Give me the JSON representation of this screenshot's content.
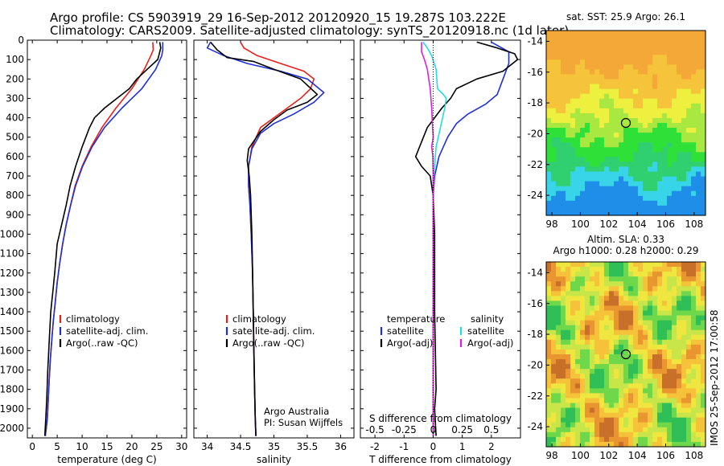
{
  "header": {
    "line1": "Argo profile: CS 5903919_29 16-Sep-2012 20120920_15 19.287S 103.222E",
    "line2": "Climatology: CARS2009. Satellite-adjusted climatology: synTS_20120918.nc (1d later)"
  },
  "colors": {
    "climatology": "#e8201c",
    "satellite": "#1f2fd6",
    "argo": "#000000",
    "sat_t": "#1f2fd6",
    "sat_s": "#22dede",
    "argo_s": "#e21ce0"
  },
  "chart_data": [
    {
      "type": "line",
      "name": "temperature",
      "xlabel": "temperature (deg C)",
      "xlim": [
        -1,
        31
      ],
      "xticks": [
        "0",
        "5",
        "10",
        "15",
        "20",
        "25",
        "30"
      ],
      "ylim": [
        0,
        2050
      ],
      "yticks": [
        "0",
        "100",
        "200",
        "300",
        "400",
        "500",
        "600",
        "700",
        "800",
        "900",
        "1000",
        "1100",
        "1200",
        "1300",
        "1400",
        "1500",
        "1600",
        "1700",
        "1800",
        "1900",
        "2000"
      ],
      "legend": [
        "climatology",
        "satellite-adj. clim.",
        "Argo(..raw -QC)"
      ],
      "series": [
        {
          "name": "climatology",
          "color": "climatology",
          "x": [
            24.2,
            24.3,
            23.8,
            22.5,
            20.0,
            16.8,
            14.0,
            11.8,
            10.0,
            8.6,
            7.7,
            6.8,
            6.1,
            5.5,
            5.0,
            4.6,
            4.2,
            3.9,
            3.6,
            3.4,
            3.2,
            3.0,
            2.8,
            2.6
          ],
          "y": [
            10,
            50,
            80,
            150,
            250,
            350,
            450,
            550,
            650,
            750,
            850,
            950,
            1050,
            1150,
            1250,
            1350,
            1450,
            1550,
            1650,
            1750,
            1850,
            1950,
            2000,
            2040
          ]
        },
        {
          "name": "satellite-adj. clim.",
          "color": "satellite",
          "x": [
            26.2,
            26.2,
            26.0,
            24.8,
            22.0,
            18.0,
            14.5,
            12.0,
            10.1,
            8.7,
            7.7,
            6.8,
            6.1,
            5.5,
            5.0,
            4.6,
            4.2,
            3.9,
            3.6,
            3.4,
            3.2,
            3.0,
            2.8,
            2.6
          ],
          "y": [
            10,
            50,
            80,
            150,
            250,
            350,
            450,
            550,
            650,
            750,
            850,
            950,
            1050,
            1150,
            1250,
            1350,
            1450,
            1550,
            1650,
            1750,
            1850,
            1950,
            2000,
            2040
          ]
        },
        {
          "name": "Argo(..raw -QC)",
          "color": "argo",
          "x": [
            25.6,
            25.8,
            25.5,
            25.2,
            23.5,
            21.0,
            19.5,
            17.0,
            14.5,
            12.5,
            11.5,
            10.0,
            8.7,
            7.6,
            6.8,
            5.9,
            5.0,
            4.5,
            4.1,
            3.7,
            3.4,
            3.1,
            2.9,
            2.7,
            2.5
          ],
          "y": [
            10,
            40,
            70,
            100,
            140,
            200,
            250,
            300,
            350,
            400,
            450,
            550,
            650,
            750,
            850,
            950,
            1050,
            1200,
            1300,
            1400,
            1550,
            1700,
            1850,
            1950,
            2040
          ]
        }
      ]
    },
    {
      "type": "line",
      "name": "salinity",
      "xlabel": "salinity",
      "xlim": [
        33.8,
        36.2
      ],
      "xticks": [
        "34",
        "34.5",
        "35",
        "35.5",
        "36"
      ],
      "ylim": [
        0,
        2050
      ],
      "legend": [
        "climatology",
        "satellite-adj. clim.",
        "Argo(..raw -QC)"
      ],
      "annotation": [
        "Argo Australia",
        "PI: Susan Wijffels"
      ],
      "series": [
        {
          "name": "climatology",
          "color": "climatology",
          "x": [
            34.5,
            34.55,
            34.75,
            35.1,
            35.45,
            35.6,
            35.55,
            35.4,
            35.2,
            35.0,
            34.8,
            34.67,
            34.62,
            34.62,
            34.64,
            34.66,
            34.68,
            34.69,
            34.7,
            34.71,
            34.72,
            34.73
          ],
          "y": [
            10,
            40,
            80,
            120,
            160,
            200,
            250,
            300,
            350,
            400,
            450,
            550,
            650,
            750,
            850,
            1000,
            1200,
            1400,
            1600,
            1800,
            1950,
            2040
          ]
        },
        {
          "name": "satellite-adj. clim.",
          "color": "satellite",
          "x": [
            34.05,
            34.0,
            34.25,
            34.6,
            35.1,
            35.5,
            35.75,
            35.6,
            35.3,
            35.0,
            34.8,
            34.67,
            34.62,
            34.62,
            34.64,
            34.66,
            34.68,
            34.69,
            34.7,
            34.71,
            34.72,
            34.73
          ],
          "y": [
            10,
            40,
            80,
            120,
            160,
            200,
            270,
            320,
            380,
            430,
            480,
            560,
            650,
            750,
            850,
            1000,
            1200,
            1400,
            1600,
            1800,
            1950,
            2040
          ]
        },
        {
          "name": "Argo(..raw -QC)",
          "color": "argo",
          "x": [
            34.05,
            34.15,
            34.3,
            34.7,
            35.0,
            35.4,
            35.65,
            35.5,
            35.2,
            35.0,
            34.8,
            34.62,
            34.6,
            34.63,
            34.65,
            34.66,
            34.67,
            34.68,
            34.69,
            34.7,
            34.71,
            34.72,
            34.73
          ],
          "y": [
            10,
            50,
            90,
            110,
            150,
            200,
            280,
            320,
            360,
            410,
            470,
            560,
            620,
            700,
            800,
            900,
            1000,
            1200,
            1400,
            1600,
            1800,
            1950,
            2040
          ]
        }
      ]
    },
    {
      "type": "line",
      "name": "difference",
      "xlabel_top": "S difference from climatology",
      "xlabel": "T difference from climatology",
      "xticks_top": [
        "-0.5",
        "-0.25",
        "0",
        "0.25",
        "0.5"
      ],
      "xticks": [
        "-2",
        "-1",
        "0",
        "1",
        "2"
      ],
      "xlim": [
        -2.5,
        3.0
      ],
      "ylim": [
        0,
        2050
      ],
      "legend_t": {
        "title": "temperature",
        "items": [
          "satellite",
          "Argo(-adj)"
        ]
      },
      "legend_s": {
        "title": "salinity",
        "items": [
          "satellite",
          "Argo(-adj)"
        ]
      },
      "series": [
        {
          "name": "T satellite",
          "color": "sat_t",
          "x": [
            2.0,
            2.6,
            2.6,
            2.4,
            2.2,
            1.8,
            1.2,
            0.8,
            0.5,
            0.2,
            0.05,
            0.0,
            0.0,
            0.0,
            0.0,
            0.0
          ],
          "y": [
            10,
            60,
            120,
            200,
            280,
            330,
            380,
            430,
            500,
            600,
            700,
            800,
            1000,
            1400,
            1800,
            2040
          ]
        },
        {
          "name": "T Argo",
          "color": "argo",
          "x": [
            1.5,
            2.2,
            2.8,
            2.9,
            2.4,
            1.5,
            0.8,
            0.6,
            0.3,
            -0.2,
            -0.6,
            -0.4,
            -0.1,
            0.0,
            0.05,
            0.05,
            0.1,
            0.05,
            0.1
          ],
          "y": [
            10,
            40,
            70,
            100,
            160,
            200,
            250,
            300,
            350,
            450,
            600,
            650,
            700,
            800,
            1000,
            1400,
            1800,
            1900,
            2040
          ]
        },
        {
          "name": "S satellite",
          "color": "sat_s",
          "x": [
            -0.35,
            -0.2,
            -0.05,
            0.1,
            0.15,
            0.35,
            0.45,
            0.4,
            0.25,
            0.1,
            0.02,
            0.0,
            0.0,
            0.0,
            0.0,
            0.0
          ],
          "y": [
            10,
            40,
            80,
            150,
            250,
            280,
            300,
            350,
            450,
            550,
            700,
            800,
            1000,
            1400,
            1800,
            2040
          ]
        },
        {
          "name": "S Argo",
          "color": "argo_s",
          "x": [
            -0.4,
            -0.4,
            -0.3,
            -0.2,
            -0.1,
            -0.05,
            -0.02,
            0.0,
            -0.05,
            -0.01,
            0.0,
            0.0,
            0.0,
            0.0,
            0.0
          ],
          "y": [
            10,
            60,
            100,
            150,
            250,
            350,
            450,
            500,
            550,
            600,
            700,
            900,
            1300,
            1700,
            2040
          ]
        }
      ]
    }
  ],
  "maps": {
    "sst": {
      "title": "sat. SST: 25.9 Argo: 26.1",
      "yticks": [
        "-14",
        "-16",
        "-18",
        "-20",
        "-22",
        "-24"
      ],
      "xticks": [
        "98",
        "100",
        "102",
        "104",
        "106",
        "108"
      ],
      "marker": {
        "lon": 103.2,
        "lat": -19.3
      }
    },
    "sla": {
      "title1": "Altim. SLA: 0.33",
      "title2": "Argo h1000: 0.28 h2000: 0.29",
      "yticks": [
        "-14",
        "-16",
        "-18",
        "-20",
        "-22",
        "-24"
      ],
      "xticks": [
        "98",
        "100",
        "102",
        "104",
        "106",
        "108"
      ],
      "marker": {
        "lon": 103.2,
        "lat": -19.3
      }
    }
  },
  "side_label": "IMOS 25-Sep-2012 17:00:58"
}
